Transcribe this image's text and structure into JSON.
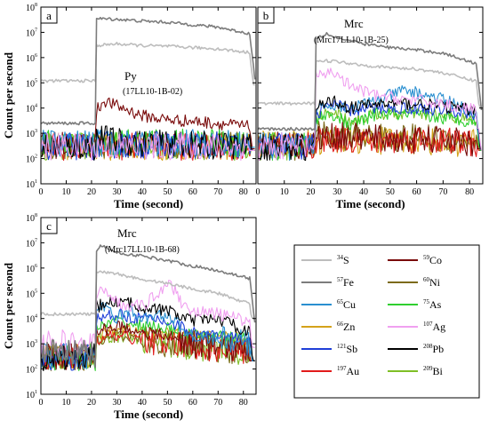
{
  "chart_data": {
    "type": "line",
    "y_scale": "log",
    "xlim": [
      0,
      85
    ],
    "ylim_exp": [
      1,
      8
    ],
    "x_ticks": [
      "0",
      "10",
      "20",
      "30",
      "40",
      "50",
      "60",
      "70",
      "80"
    ],
    "y_ticks": [
      {
        "base": "10",
        "exp": "1"
      },
      {
        "base": "10",
        "exp": "2"
      },
      {
        "base": "10",
        "exp": "3"
      },
      {
        "base": "10",
        "exp": "4"
      },
      {
        "base": "10",
        "exp": "5"
      },
      {
        "base": "10",
        "exp": "6"
      },
      {
        "base": "10",
        "exp": "7"
      },
      {
        "base": "10",
        "exp": "8"
      }
    ],
    "xlabel": "Time (second)",
    "ylabel": "Count per second",
    "legend": {
      "placement": "bottom-right",
      "entries": [
        {
          "key": "S34",
          "mass": "34",
          "symbol": "S",
          "color": "#bdbdbd"
        },
        {
          "key": "Co59",
          "mass": "59",
          "symbol": "Co",
          "color": "#7a0b0b"
        },
        {
          "key": "Fe57",
          "mass": "57",
          "symbol": "Fe",
          "color": "#7c7c7c"
        },
        {
          "key": "Ni60",
          "mass": "60",
          "symbol": "Ni",
          "color": "#7c6a1a"
        },
        {
          "key": "Cu65",
          "mass": "65",
          "symbol": "Cu",
          "color": "#2a8fd0"
        },
        {
          "key": "As75",
          "mass": "75",
          "symbol": "As",
          "color": "#2fcf2f"
        },
        {
          "key": "Zn66",
          "mass": "66",
          "symbol": "Zn",
          "color": "#d4a21a"
        },
        {
          "key": "Ag107",
          "mass": "107",
          "symbol": "Ag",
          "color": "#f0a0f0"
        },
        {
          "key": "Sb121",
          "mass": "121",
          "symbol": "Sb",
          "color": "#1f3fd8"
        },
        {
          "key": "Pb208",
          "mass": "208",
          "symbol": "Pb",
          "color": "#000000"
        },
        {
          "key": "Au197",
          "mass": "197",
          "symbol": "Au",
          "color": "#e21b1b"
        },
        {
          "key": "Bi209",
          "mass": "209",
          "symbol": "Bi",
          "color": "#7fbf26"
        }
      ]
    },
    "panels": [
      {
        "id": "a",
        "label": "a",
        "mineral": "Py",
        "sample": "(17LL10-1B-02)",
        "series": {
          "S34": {
            "bg": 120000,
            "x": [
              22,
              30,
              40,
              50,
              60,
              70,
              82
            ],
            "y": [
              3000000,
              3500000,
              3000000,
              2800000,
              2500000,
              2200000,
              1600000
            ]
          },
          "Fe57": {
            "bg": 2500,
            "x": [
              22,
              30,
              40,
              50,
              60,
              70,
              82
            ],
            "y": [
              35000000,
              33000000,
              28000000,
              25000000,
              20000000,
              16000000,
              9000000
            ]
          },
          "Co59": {
            "bg": 350,
            "x": [
              22,
              25,
              30,
              35,
              40,
              50,
              60,
              70,
              82
            ],
            "y": [
              8000,
              20000,
              12000,
              8000,
              5000,
              3500,
              3000,
              2500,
              1800
            ]
          },
          "Ni60": {
            "bg": 300,
            "x": [
              22,
              40,
              60,
              82
            ],
            "y": [
              350,
              350,
              350,
              350
            ]
          },
          "Cu65": {
            "bg": 400,
            "x": [
              22,
              40,
              60,
              82
            ],
            "y": [
              400,
              400,
              400,
              400
            ]
          },
          "As75": {
            "bg": 400,
            "x": [
              22,
              40,
              60,
              82
            ],
            "y": [
              450,
              450,
              450,
              400
            ]
          },
          "Zn66": {
            "bg": 300,
            "x": [
              22,
              40,
              60,
              82
            ],
            "y": [
              300,
              300,
              300,
              300
            ]
          },
          "Ag107": {
            "bg": 300,
            "x": [
              22,
              40,
              60,
              82
            ],
            "y": [
              300,
              300,
              300,
              300
            ]
          },
          "Sb121": {
            "bg": 300,
            "x": [
              22,
              40,
              60,
              82
            ],
            "y": [
              350,
              350,
              350,
              300
            ]
          },
          "Pb208": {
            "bg": 300,
            "x": [
              22,
              30,
              40,
              60,
              82
            ],
            "y": [
              700,
              500,
              400,
              350,
              300
            ]
          },
          "Au197": {
            "bg": 300,
            "x": [
              22,
              40,
              60,
              82
            ],
            "y": [
              300,
              300,
              300,
              300
            ]
          },
          "Bi209": {
            "bg": 300,
            "x": [
              22,
              40,
              60,
              82
            ],
            "y": [
              350,
              350,
              300,
              300
            ]
          }
        }
      },
      {
        "id": "b",
        "label": "b",
        "mineral": "Mrc",
        "sample": "(Mrc17LL10-1B-25)",
        "series": {
          "S34": {
            "bg": 15000,
            "x": [
              22,
              30,
              40,
              50,
              60,
              70,
              82
            ],
            "y": [
              800000,
              700000,
              500000,
              400000,
              350000,
              250000,
              120000
            ]
          },
          "Fe57": {
            "bg": 1500,
            "x": [
              22,
              26,
              30,
              40,
              50,
              60,
              70,
              82
            ],
            "y": [
              6000000,
              9000000,
              6000000,
              3500000,
              2500000,
              2000000,
              1500000,
              600000
            ]
          },
          "Co59": {
            "bg": 350,
            "x": [
              22,
              30,
              40,
              50,
              60,
              70,
              82
            ],
            "y": [
              600,
              800,
              700,
              600,
              500,
              600,
              400
            ]
          },
          "Ni60": {
            "bg": 300,
            "x": [
              22,
              30,
              40,
              50,
              60,
              70,
              82
            ],
            "y": [
              900,
              700,
              800,
              600,
              700,
              600,
              500
            ]
          },
          "Cu65": {
            "bg": 300,
            "x": [
              22,
              28,
              35,
              45,
              55,
              60,
              65,
              75,
              82
            ],
            "y": [
              10000,
              15000,
              10000,
              20000,
              50000,
              40000,
              30000,
              15000,
              5000
            ]
          },
          "As75": {
            "bg": 300,
            "x": [
              22,
              28,
              35,
              45,
              60,
              70,
              82
            ],
            "y": [
              4000,
              6000,
              2000,
              6000,
              5000,
              4000,
              3000
            ]
          },
          "Zn66": {
            "bg": 400,
            "x": [
              22,
              40,
              60,
              82
            ],
            "y": [
              500,
              500,
              500,
              400
            ]
          },
          "Ag107": {
            "bg": 300,
            "x": [
              22,
              28,
              35,
              45,
              60,
              70,
              82
            ],
            "y": [
              150000,
              300000,
              70000,
              30000,
              20000,
              15000,
              8000
            ]
          },
          "Sb121": {
            "bg": 300,
            "x": [
              22,
              28,
              35,
              45,
              60,
              70,
              82
            ],
            "y": [
              6000,
              15000,
              8000,
              10000,
              10000,
              8000,
              6000
            ]
          },
          "Pb208": {
            "bg": 300,
            "x": [
              22,
              28,
              35,
              45,
              60,
              70,
              82
            ],
            "y": [
              10000,
              20000,
              10000,
              15000,
              15000,
              12000,
              8000
            ]
          },
          "Au197": {
            "bg": 300,
            "x": [
              22,
              30,
              40,
              50,
              60,
              70,
              82
            ],
            "y": [
              500,
              600,
              500,
              500,
              600,
              500,
              400
            ]
          },
          "Bi209": {
            "bg": 300,
            "x": [
              22,
              28,
              35,
              45,
              60,
              70,
              82
            ],
            "y": [
              4000,
              8000,
              3000,
              6000,
              6000,
              5000,
              3000
            ]
          }
        }
      },
      {
        "id": "c",
        "label": "c",
        "mineral": "Mrc",
        "sample": "(Mrc17LL10-1B-68)",
        "series": {
          "S34": {
            "bg": 15000,
            "x": [
              22,
              30,
              40,
              50,
              60,
              70,
              82
            ],
            "y": [
              700000,
              600000,
              350000,
              250000,
              150000,
              100000,
              40000
            ]
          },
          "Fe57": {
            "bg": 400,
            "x": [
              22,
              24,
              30,
              40,
              50,
              60,
              70,
              82
            ],
            "y": [
              5000000,
              8000000,
              4000000,
              3000000,
              2000000,
              1200000,
              800000,
              400000
            ]
          },
          "Co59": {
            "bg": 300,
            "x": [
              22,
              30,
              40,
              50,
              60,
              70,
              82
            ],
            "y": [
              3000,
              5000,
              3000,
              2000,
              1000,
              800,
              500
            ]
          },
          "Ni60": {
            "bg": 300,
            "x": [
              22,
              30,
              40,
              50,
              60,
              70,
              82
            ],
            "y": [
              1500,
              2000,
              1500,
              1000,
              800,
              600,
              500
            ]
          },
          "Cu65": {
            "bg": 300,
            "x": [
              22,
              26,
              30,
              35,
              40,
              50,
              55,
              60,
              70,
              82
            ],
            "y": [
              20000,
              30000,
              10000,
              20000,
              10000,
              15000,
              5000,
              2000,
              1500,
              1000
            ]
          },
          "As75": {
            "bg": 300,
            "x": [
              22,
              30,
              40,
              50,
              60,
              70,
              82
            ],
            "y": [
              4000,
              8000,
              5000,
              4000,
              2000,
              2000,
              1500
            ]
          },
          "Zn66": {
            "bg": 300,
            "x": [
              22,
              30,
              40,
              50,
              60,
              70,
              82
            ],
            "y": [
              2000,
              4000,
              3000,
              2500,
              2000,
              2000,
              1500
            ]
          },
          "Ag107": {
            "bg": 1000,
            "x": [
              22,
              26,
              30,
              40,
              51,
              55,
              60,
              70,
              82
            ],
            "y": [
              80000,
              150000,
              40000,
              30000,
              300000,
              50000,
              20000,
              15000,
              8000
            ]
          },
          "Sb121": {
            "bg": 300,
            "x": [
              22,
              30,
              40,
              50,
              60,
              70,
              82
            ],
            "y": [
              10000,
              15000,
              10000,
              8000,
              3000,
              2000,
              1500
            ]
          },
          "Pb208": {
            "bg": 300,
            "x": [
              22,
              30,
              40,
              50,
              60,
              70,
              82
            ],
            "y": [
              30000,
              50000,
              30000,
              20000,
              8000,
              10000,
              3000
            ]
          },
          "Au197": {
            "bg": 300,
            "x": [
              22,
              30,
              40,
              50,
              60,
              70,
              82
            ],
            "y": [
              1500,
              2000,
              1500,
              1000,
              800,
              600,
              500
            ]
          },
          "Bi209": {
            "bg": 300,
            "x": [
              22,
              30,
              40,
              50,
              60,
              70,
              82
            ],
            "y": [
              1500,
              2000,
              1500,
              1000,
              800,
              600,
              500
            ]
          }
        }
      }
    ]
  }
}
